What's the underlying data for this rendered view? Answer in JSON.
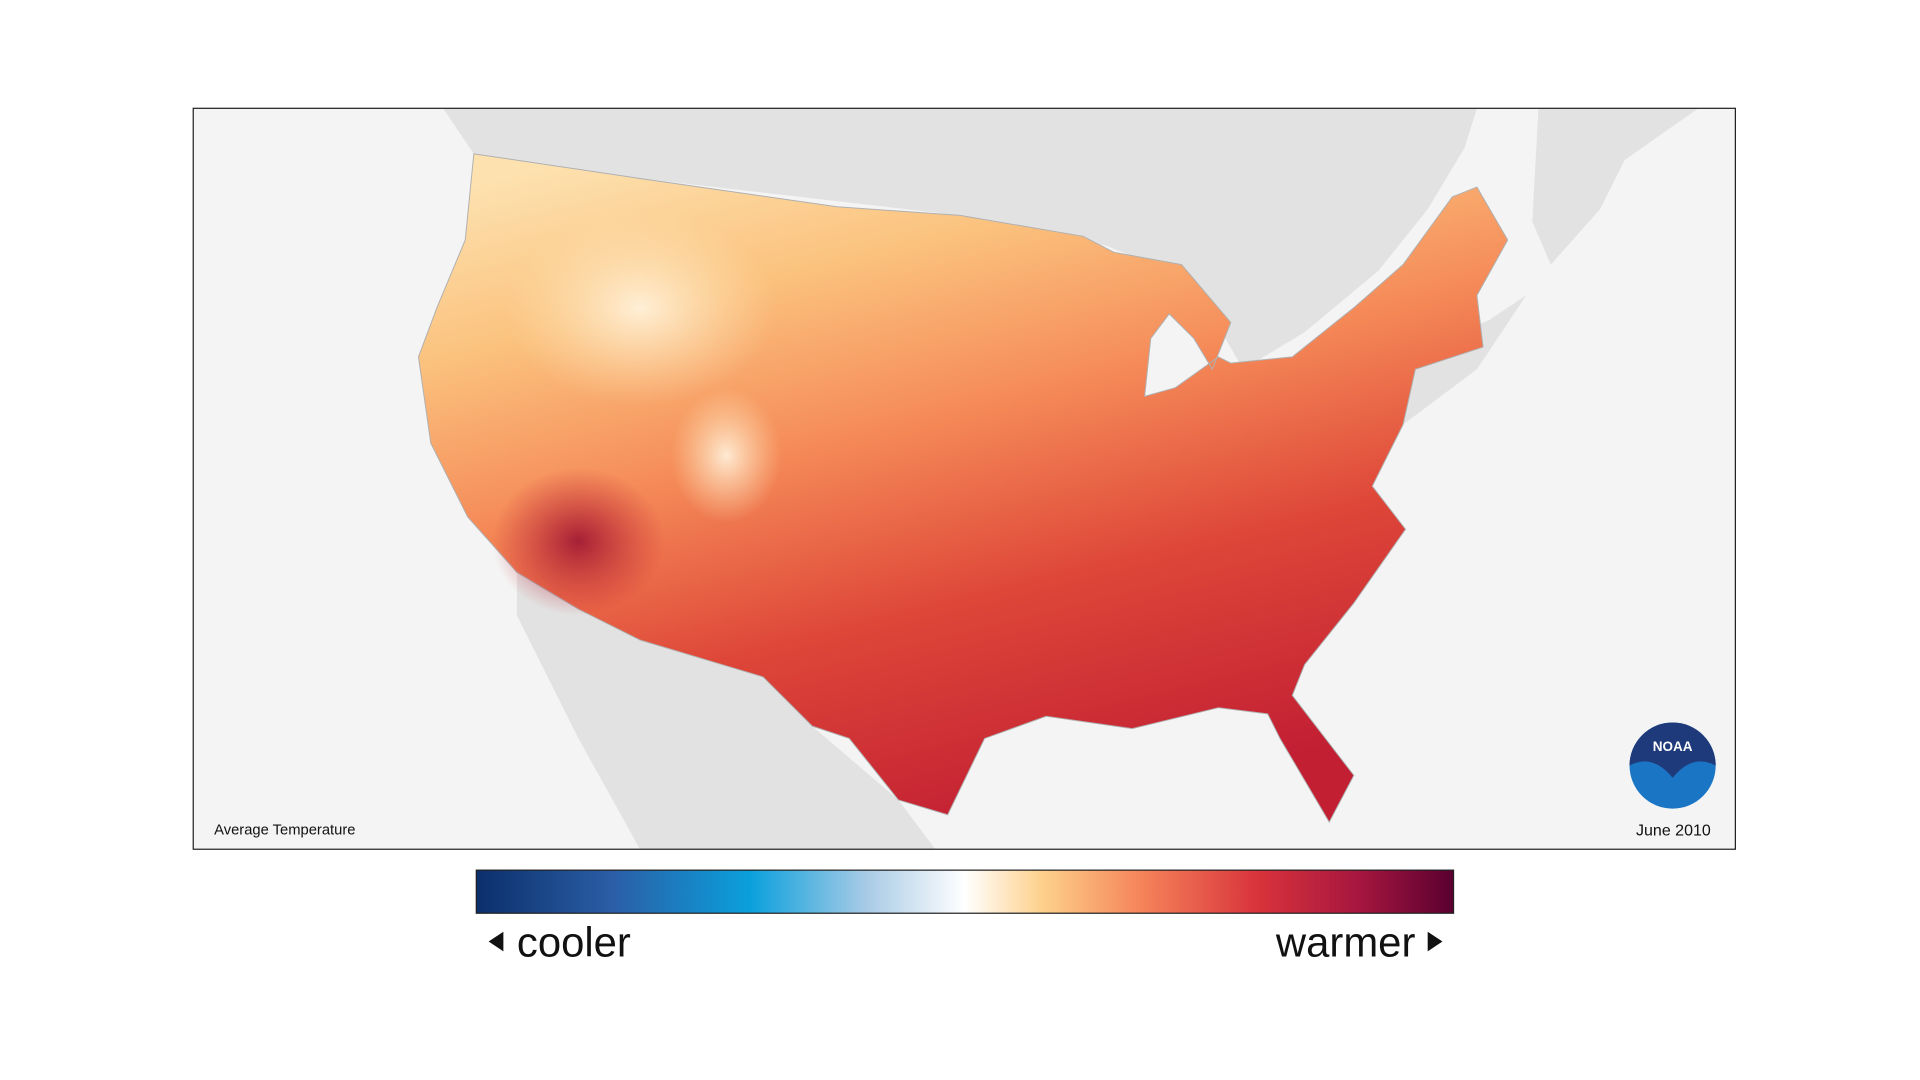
{
  "map": {
    "caption": "Average Temperature",
    "date": "June 2010",
    "logo": "NOAA",
    "legend": {
      "low": "cooler",
      "high": "warmer"
    }
  }
}
